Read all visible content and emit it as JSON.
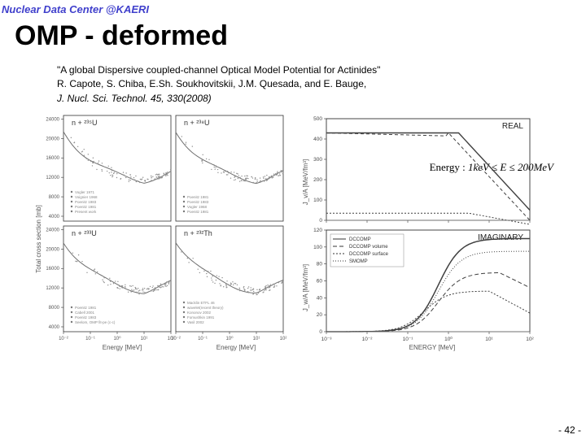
{
  "header": "Nuclear Data Center @KAERI",
  "title": "OMP - deformed",
  "citation": {
    "line1": "\"A global Dispersive coupled-channel Optical Model Potential for Actinides\"",
    "line2": "R. Capote, S. Chiba, E.Sh. Soukhovitskii, J.M. Quesada, and E. Bauge,",
    "journal": "J. Nucl. Sci. Technol. 45, 330(2008)"
  },
  "energy_label_prefix": "Energy : ",
  "energy_range": "1keV ≤ E ≤ 200MeV",
  "page_number": "- 42 -",
  "left_figure": {
    "ylabel": "Total cross section [mb]",
    "xlabel": "Energy [MeV]",
    "yticks_top": [
      "4000",
      "8000",
      "12000",
      "16000",
      "20000",
      "24000"
    ],
    "xticks": [
      "10⁻²",
      "10⁻¹",
      "10⁰",
      "10¹",
      "10²"
    ],
    "panels": [
      {
        "label": "n + ²³⁵U"
      },
      {
        "label": "n + ²³⁸U"
      },
      {
        "label": "n + ²³³U"
      },
      {
        "label": "n + ²³²Th"
      }
    ],
    "legend_panel1": [
      "Vogler 1971",
      "Voignier 1968",
      "Poenitz 1983",
      "Poenitz 1981",
      "Present work"
    ],
    "legend_panel2": [
      "Poenitz 1981",
      "Poenitz 1983",
      "Vogler 1968",
      "Poenitz 1981"
    ],
    "legend_panel3": [
      "Poenitz 1981",
      "Cabell 2001",
      "Poenitz 1983",
      "Seelom, OMP fit-pe (c-c)"
    ],
    "legend_panel4": [
      "Macklin ETFL 46",
      "wavelet(recent theory)",
      "Kononov 2002",
      "Fomushkin 1991",
      "Vasil 2002"
    ],
    "axis_color": "#333333",
    "grid_color": "#d0d0d0",
    "curve_color": "#707070",
    "scatter_color": "#909090"
  },
  "right_figure": {
    "xlabel": "ENERGY [MeV]",
    "ylabel_top": "J_v/A [MeV/fm³]",
    "ylabel_bot": "J_w/A [MeV/fm³]",
    "yticks_top": [
      "0",
      "100",
      "200",
      "300",
      "400",
      "500"
    ],
    "yticks_bot": [
      "0",
      "20",
      "40",
      "60",
      "80",
      "100",
      "120"
    ],
    "xticks": [
      "10⁻³",
      "10⁻²",
      "10⁻¹",
      "10⁰",
      "10¹",
      "10²"
    ],
    "panel_top_label": "REAL",
    "panel_bot_label": "IMAGINARY",
    "legend": [
      "DCCOMP",
      "DCCOMP volume",
      "DCCOMP surface",
      "SMOMP"
    ],
    "axis_color": "#333333",
    "curve_color": "#404040"
  }
}
